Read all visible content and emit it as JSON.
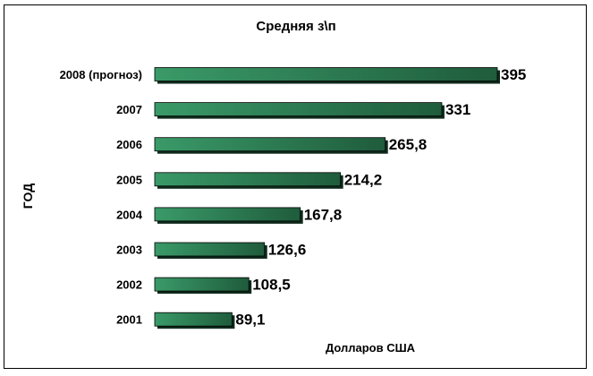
{
  "chart_data": {
    "type": "bar",
    "orientation": "horizontal",
    "title": "Средняя з\\п",
    "xlabel": "Долларов США",
    "ylabel": "ГОД",
    "categories": [
      "2008 (прогноз)",
      "2007",
      "2006",
      "2005",
      "2004",
      "2003",
      "2002",
      "2001"
    ],
    "values": [
      395,
      331,
      265.8,
      214.2,
      167.8,
      126.6,
      108.5,
      89.1
    ],
    "value_labels": [
      "395",
      "331",
      "265,8",
      "214,2",
      "167,8",
      "126,6",
      "108,5",
      "89,1"
    ],
    "xlim": [
      0,
      395
    ],
    "grid": false,
    "legend": "none",
    "colors": {
      "bar_light": "#3a9a68",
      "bar_dark": "#1f5c3c",
      "shadow": "#0f2a1c",
      "outline": "#000000"
    }
  }
}
